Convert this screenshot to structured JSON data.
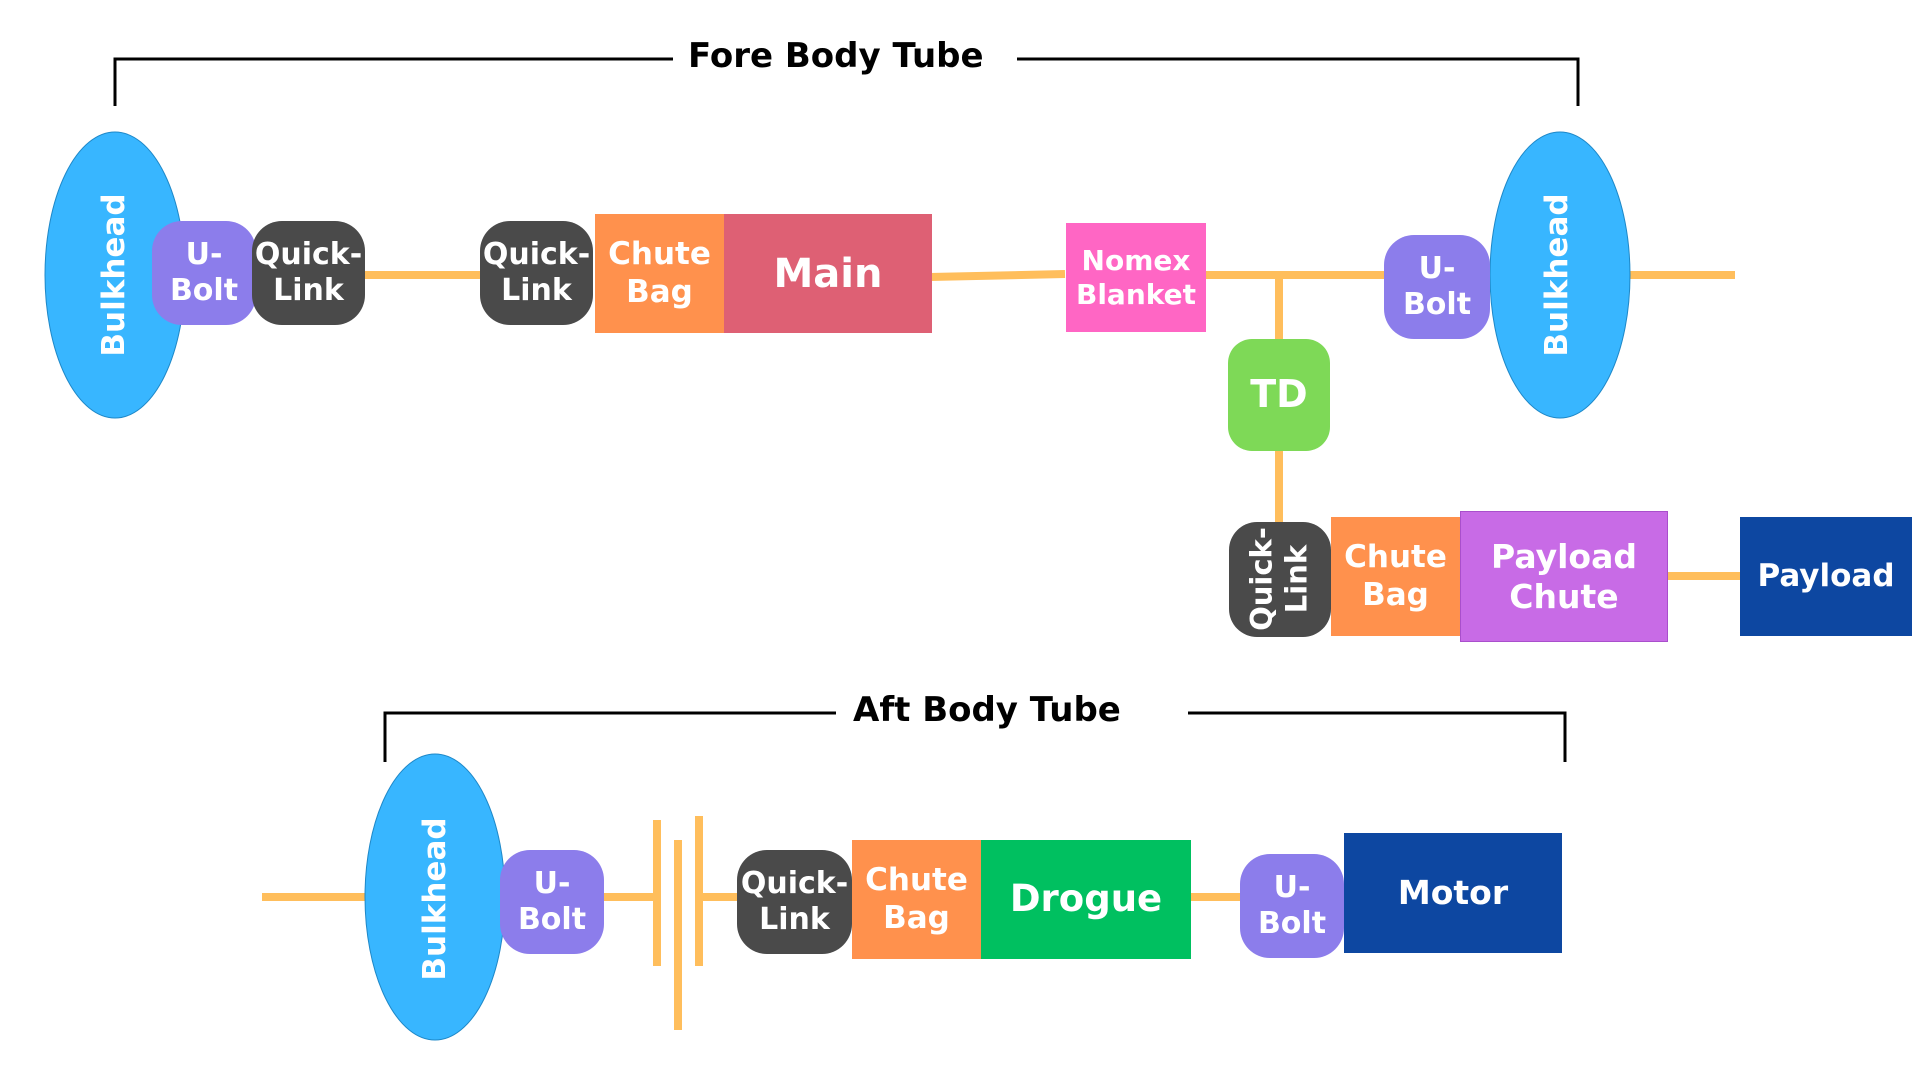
{
  "titles": {
    "fore": "Fore Body Tube",
    "aft": "Aft Body Tube"
  },
  "labels": {
    "bulkhead": "Bulkhead",
    "ubolt": "U-\nBolt",
    "quicklink": "Quick-\nLink",
    "chute_bag": "Chute\nBag",
    "main": "Main",
    "nomex": "Nomex\nBlanket",
    "td": "TD",
    "payload_chute": "Payload\nChute",
    "payload": "Payload",
    "drogue": "Drogue",
    "motor": "Motor"
  },
  "colors": {
    "cord": "#FFBE5C",
    "bulkhead": "#38B6FF",
    "ubolt": "#8C7DEB",
    "quicklink": "#4A4A4A",
    "chute_bag": "#FF914D",
    "main": "#DE6074",
    "nomex": "#FF66C4",
    "td": "#7ED957",
    "payload_chute": "#C86BE6",
    "payload": "#0D47A1",
    "drogue": "#00C060",
    "motor": "#0D47A1",
    "bracket": "#000000"
  }
}
